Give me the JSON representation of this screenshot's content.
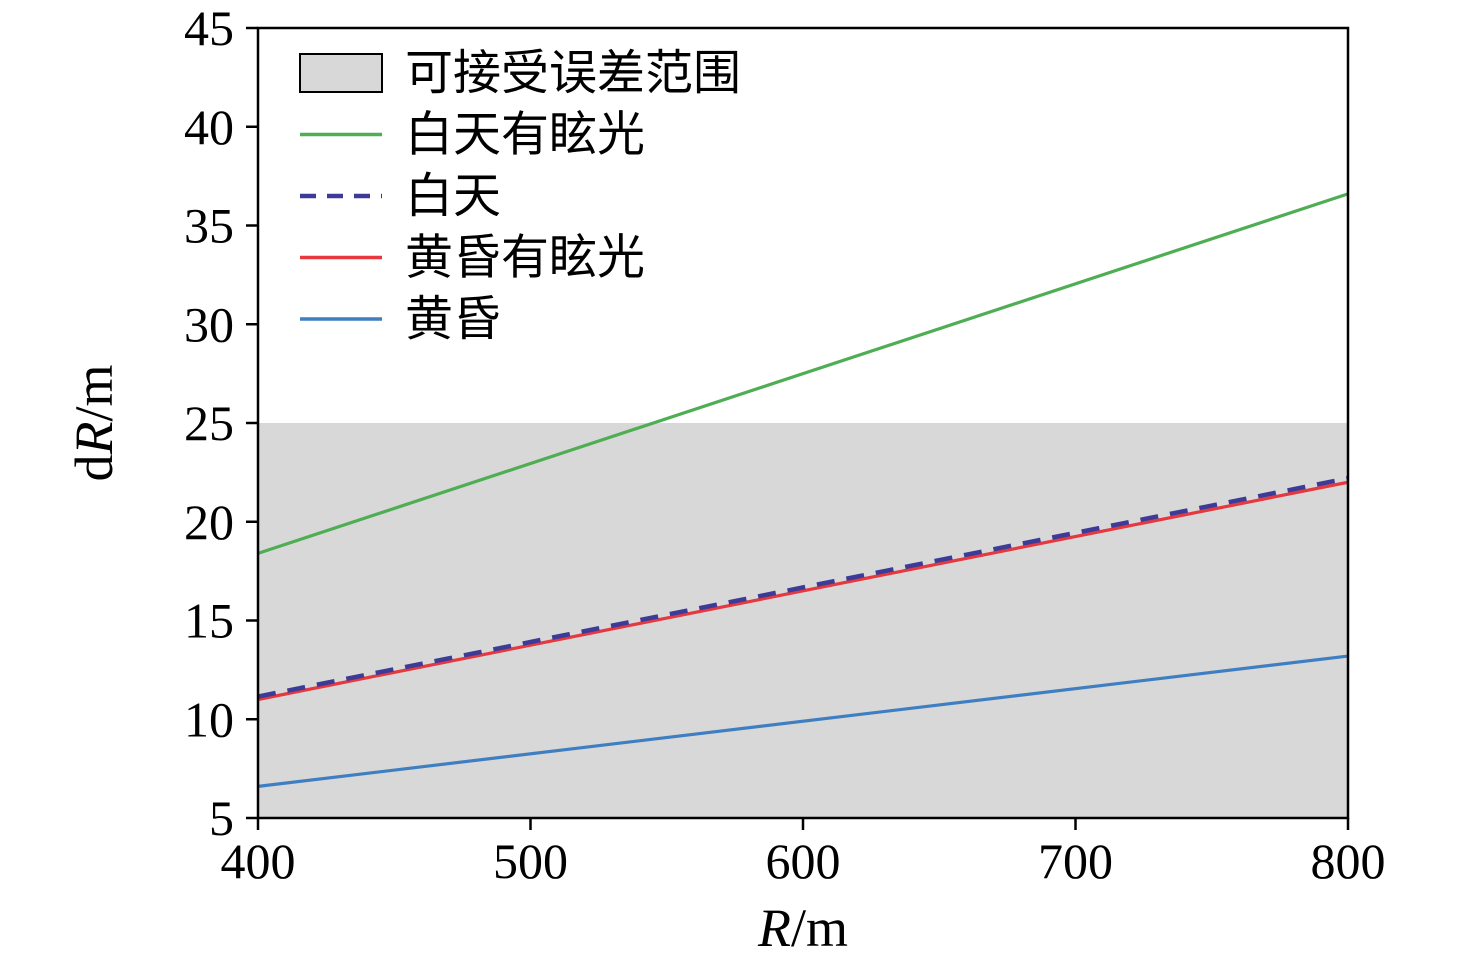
{
  "chart_data": {
    "type": "line",
    "title": "",
    "xlabel_parts": [
      {
        "text": "R",
        "italic": true
      },
      {
        "text": "/m",
        "italic": false
      }
    ],
    "ylabel_parts": [
      {
        "text": "d",
        "italic": false
      },
      {
        "text": "R",
        "italic": true
      },
      {
        "text": "/m",
        "italic": false
      }
    ],
    "xlim": [
      400,
      800
    ],
    "ylim": [
      5,
      45
    ],
    "xticks": [
      400,
      500,
      600,
      700,
      800
    ],
    "yticks": [
      5,
      10,
      15,
      20,
      25,
      30,
      35,
      40,
      45
    ],
    "grid": false,
    "legend_position": "upper left",
    "band": {
      "label": "可接受误差范围",
      "ymin": 5,
      "ymax": 25,
      "color": "#d8d8d8",
      "border": "#000000"
    },
    "series": [
      {
        "name": "白天有眩光",
        "color": "#4fae54",
        "dash": null,
        "x": [
          400,
          800
        ],
        "y": [
          18.4,
          36.6
        ]
      },
      {
        "name": "白天",
        "color": "#3c3b98",
        "dash": "18 12",
        "x": [
          400,
          800
        ],
        "y": [
          11.15,
          22.2
        ]
      },
      {
        "name": "黄昏有眩光",
        "color": "#e6383e",
        "dash": null,
        "x": [
          400,
          800
        ],
        "y": [
          11.0,
          22.0
        ]
      },
      {
        "name": "黄昏",
        "color": "#3f7fc1",
        "dash": null,
        "x": [
          400,
          800
        ],
        "y": [
          6.6,
          13.2
        ]
      }
    ],
    "draw_order": [
      0,
      2,
      1,
      3
    ]
  }
}
